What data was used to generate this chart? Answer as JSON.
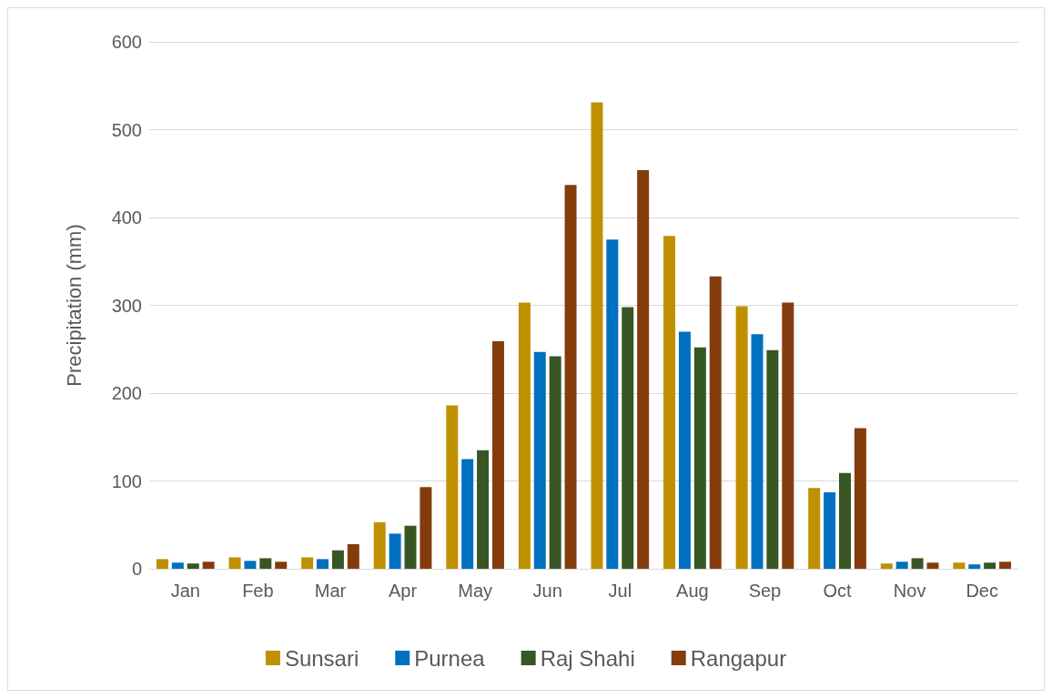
{
  "chart_data": {
    "type": "bar",
    "ylabel": "Precipitation (mm)",
    "categories": [
      "Jan",
      "Feb",
      "Mar",
      "Apr",
      "May",
      "Jun",
      "Jul",
      "Aug",
      "Sep",
      "Oct",
      "Nov",
      "Dec"
    ],
    "series": [
      {
        "name": "Sunsari",
        "color": "#bf9000",
        "values": [
          11,
          13,
          13,
          53,
          186,
          303,
          531,
          379,
          299,
          92,
          6,
          7
        ]
      },
      {
        "name": "Purnea",
        "color": "#0070c0",
        "values": [
          7,
          9,
          11,
          40,
          125,
          247,
          375,
          270,
          267,
          87,
          8,
          5
        ]
      },
      {
        "name": "Raj Shahi",
        "color": "#375623",
        "values": [
          6,
          12,
          21,
          49,
          135,
          242,
          298,
          252,
          249,
          109,
          12,
          7
        ]
      },
      {
        "name": "Rangapur",
        "color": "#843c0c",
        "values": [
          8,
          8,
          28,
          93,
          259,
          437,
          454,
          333,
          303,
          160,
          7,
          8
        ]
      }
    ],
    "ylim": [
      0,
      600
    ],
    "yticks": [
      0,
      100,
      200,
      300,
      400,
      500,
      600
    ],
    "grid": "y",
    "legend": "bottom"
  }
}
